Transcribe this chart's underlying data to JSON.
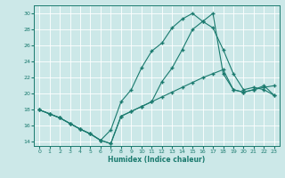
{
  "xlabel": "Humidex (Indice chaleur)",
  "xlim": [
    -0.5,
    23.5
  ],
  "ylim": [
    13.5,
    31
  ],
  "yticks": [
    14,
    16,
    18,
    20,
    22,
    24,
    26,
    28,
    30
  ],
  "xticks": [
    0,
    1,
    2,
    3,
    4,
    5,
    6,
    7,
    8,
    9,
    10,
    11,
    12,
    13,
    14,
    15,
    16,
    17,
    18,
    19,
    20,
    21,
    22,
    23
  ],
  "bg_color": "#cce8e8",
  "grid_color": "#b8d8d8",
  "line_color": "#1a7a6e",
  "line1_x": [
    0,
    1,
    2,
    3,
    4,
    5,
    6,
    7,
    8,
    9,
    10,
    11,
    12,
    13,
    14,
    15,
    16,
    17,
    18,
    19,
    20,
    21,
    22,
    23
  ],
  "line1_y": [
    18.0,
    17.5,
    17.0,
    16.3,
    15.6,
    15.0,
    14.2,
    13.8,
    17.2,
    17.8,
    18.4,
    19.0,
    19.6,
    20.2,
    20.8,
    21.4,
    22.0,
    22.5,
    23.0,
    20.5,
    20.2,
    20.5,
    20.8,
    21.0
  ],
  "line2_x": [
    0,
    1,
    2,
    3,
    4,
    5,
    6,
    7,
    8,
    9,
    10,
    11,
    12,
    13,
    14,
    15,
    16,
    17,
    18,
    19,
    20,
    21,
    22,
    23
  ],
  "line2_y": [
    18.0,
    17.5,
    17.0,
    16.3,
    15.6,
    15.0,
    14.2,
    15.5,
    19.0,
    20.5,
    23.2,
    25.3,
    26.3,
    28.2,
    29.3,
    30.0,
    29.0,
    28.2,
    25.5,
    22.5,
    20.5,
    20.8,
    20.5,
    19.8
  ],
  "line3_x": [
    0,
    1,
    2,
    3,
    4,
    5,
    6,
    7,
    8,
    9,
    10,
    11,
    12,
    13,
    14,
    15,
    16,
    17,
    18,
    19,
    20,
    21,
    22,
    23
  ],
  "line3_y": [
    18.0,
    17.5,
    17.0,
    16.3,
    15.6,
    15.0,
    14.2,
    13.8,
    17.2,
    17.8,
    18.4,
    19.0,
    21.5,
    23.2,
    25.5,
    28.0,
    29.0,
    30.0,
    22.5,
    20.5,
    20.2,
    20.5,
    21.0,
    19.8
  ]
}
